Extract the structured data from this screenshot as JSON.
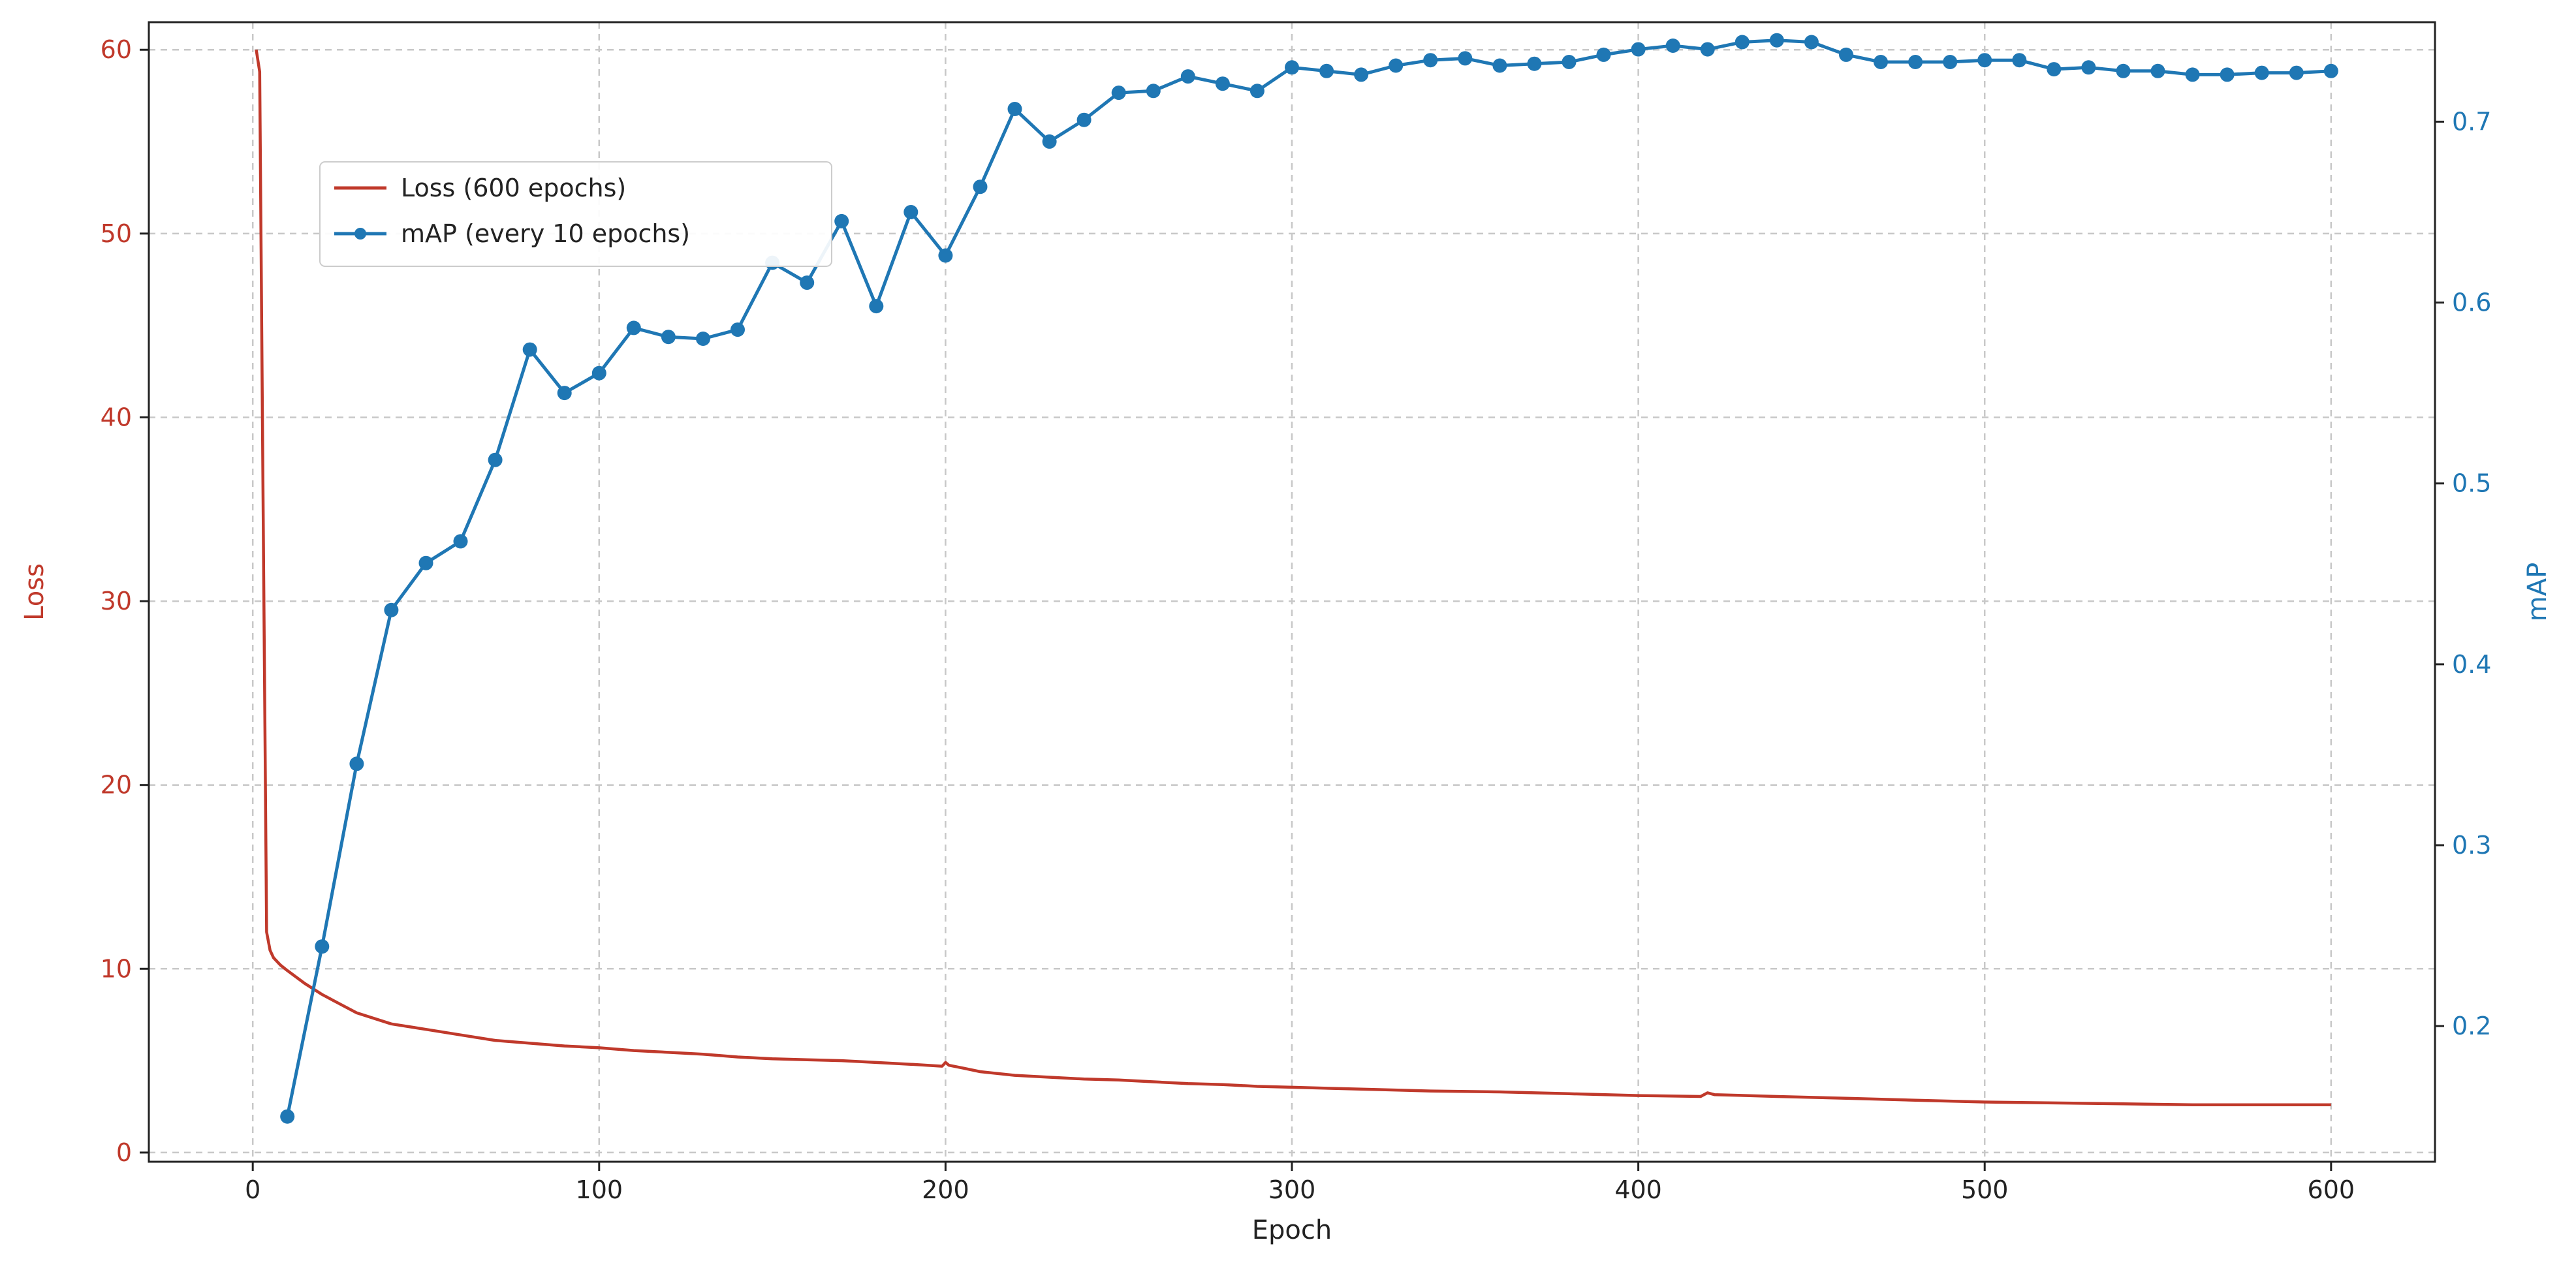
{
  "chart_data": {
    "type": "line",
    "title": "",
    "xlabel": "Epoch",
    "ylabel_left": "Loss",
    "ylabel_right": "mAP",
    "xlim": [
      -30,
      630
    ],
    "ylim_left": [
      -0.5,
      61.5
    ],
    "ylim_right": [
      0.125,
      0.755
    ],
    "x_ticks": [
      0,
      100,
      200,
      300,
      400,
      500,
      600
    ],
    "y_left_ticks": [
      0,
      10,
      20,
      30,
      40,
      50,
      60
    ],
    "y_right_ticks": [
      0.2,
      0.3,
      0.4,
      0.5,
      0.6,
      0.7
    ],
    "grid": true,
    "legend_position": "upper-left",
    "colors": {
      "loss": "#c0392b",
      "map": "#1f77b4",
      "grid": "#c8c8c8",
      "left_axis": "#c0392b",
      "right_axis": "#1f77b4"
    },
    "series": [
      {
        "name": "Loss (600 epochs)",
        "axis": "left",
        "style": "line",
        "x": [
          1,
          2,
          3,
          4,
          5,
          6,
          8,
          10,
          15,
          20,
          25,
          30,
          40,
          50,
          60,
          70,
          80,
          90,
          100,
          110,
          120,
          130,
          140,
          150,
          160,
          170,
          180,
          190,
          199,
          200,
          201,
          205,
          210,
          220,
          230,
          240,
          250,
          260,
          270,
          280,
          290,
          300,
          320,
          340,
          360,
          380,
          400,
          418,
          420,
          422,
          440,
          460,
          480,
          500,
          520,
          540,
          560,
          580,
          600
        ],
        "y": [
          60.0,
          58.8,
          35.0,
          12.0,
          11.0,
          10.6,
          10.2,
          9.9,
          9.2,
          8.6,
          8.1,
          7.6,
          7.0,
          6.7,
          6.4,
          6.1,
          5.95,
          5.8,
          5.7,
          5.55,
          5.45,
          5.35,
          5.2,
          5.1,
          5.05,
          5.0,
          4.9,
          4.8,
          4.7,
          4.9,
          4.75,
          4.6,
          4.4,
          4.2,
          4.1,
          4.0,
          3.95,
          3.85,
          3.75,
          3.7,
          3.6,
          3.55,
          3.45,
          3.35,
          3.3,
          3.2,
          3.1,
          3.05,
          3.25,
          3.15,
          3.05,
          2.95,
          2.85,
          2.75,
          2.7,
          2.65,
          2.6,
          2.6,
          2.6
        ]
      },
      {
        "name": "mAP (every 10 epochs)",
        "axis": "right",
        "style": "line-markers",
        "x": [
          10,
          20,
          30,
          40,
          50,
          60,
          70,
          80,
          90,
          100,
          110,
          120,
          130,
          140,
          150,
          160,
          170,
          180,
          190,
          200,
          210,
          220,
          230,
          240,
          250,
          260,
          270,
          280,
          290,
          300,
          310,
          320,
          330,
          340,
          350,
          360,
          370,
          380,
          390,
          400,
          410,
          420,
          430,
          440,
          450,
          460,
          470,
          480,
          490,
          500,
          510,
          520,
          530,
          540,
          550,
          560,
          570,
          580,
          590,
          600
        ],
        "y": [
          0.15,
          0.244,
          0.345,
          0.43,
          0.456,
          0.468,
          0.513,
          0.574,
          0.55,
          0.561,
          0.586,
          0.581,
          0.58,
          0.585,
          0.622,
          0.611,
          0.645,
          0.598,
          0.65,
          0.626,
          0.664,
          0.707,
          0.689,
          0.701,
          0.716,
          0.717,
          0.725,
          0.721,
          0.717,
          0.73,
          0.728,
          0.726,
          0.731,
          0.734,
          0.735,
          0.731,
          0.732,
          0.733,
          0.737,
          0.74,
          0.742,
          0.74,
          0.744,
          0.745,
          0.744,
          0.737,
          0.733,
          0.733,
          0.733,
          0.734,
          0.734,
          0.729,
          0.73,
          0.728,
          0.728,
          0.726,
          0.726,
          0.727,
          0.727,
          0.728
        ]
      }
    ]
  }
}
